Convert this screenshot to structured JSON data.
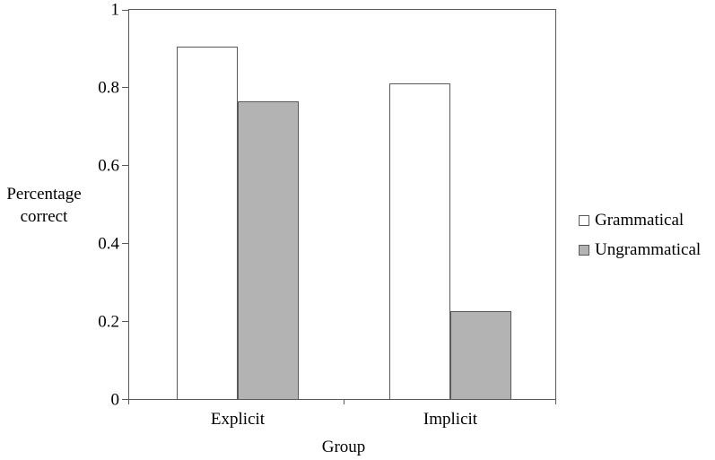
{
  "figure": {
    "y_axis_title": "Percentage\ncorrect",
    "x_axis_title": "Group"
  },
  "chart_data": {
    "type": "bar",
    "title": "",
    "categories": [
      "Explicit",
      "Implicit"
    ],
    "series": [
      {
        "name": "Grammatical",
        "color": "#ffffff",
        "values": [
          0.905,
          0.81
        ]
      },
      {
        "name": "Ungrammatical",
        "color": "#b3b3b3",
        "values": [
          0.765,
          0.225
        ]
      }
    ],
    "xlabel": "Group",
    "ylabel": "Percentage correct",
    "ylim": [
      0,
      1
    ],
    "yticks": [
      "0",
      "0.2",
      "0.4",
      "0.6",
      "0.8",
      "1"
    ],
    "grid": false,
    "legend_position": "right",
    "plot_border_color": "#595959",
    "bar_border_color": "#595959",
    "text_color": "#000000"
  }
}
